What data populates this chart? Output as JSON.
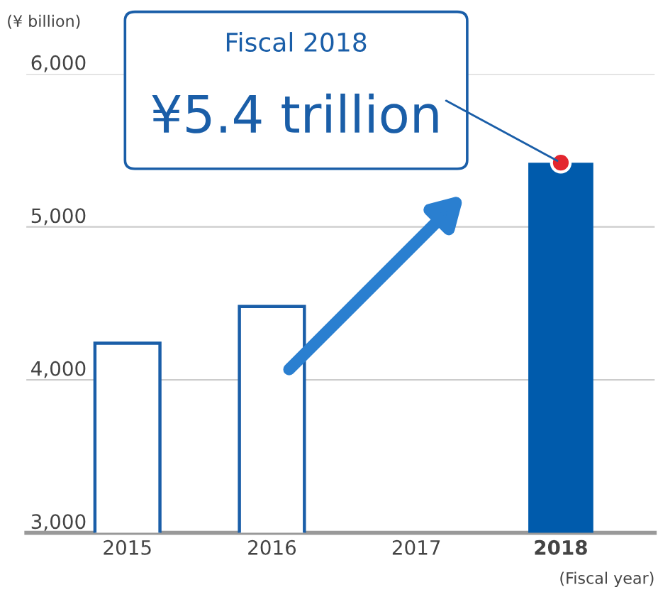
{
  "chart_data": {
    "type": "bar",
    "ylabel": "(¥ billion)",
    "xlabel": "(Fiscal year)",
    "categories": [
      "2015",
      "2016",
      "2017",
      "2018"
    ],
    "series": [
      {
        "color": "#1a5ea8",
        "values": [
          4240,
          4480,
          null,
          null
        ]
      },
      {
        "color": "#005bac",
        "values": [
          null,
          null,
          null,
          5420
        ]
      },
      {
        "type": "scatter",
        "color": "#e3262f",
        "values": [
          null,
          null,
          null,
          5420
        ]
      }
    ],
    "ylim": [
      3000,
      6000
    ],
    "yticks": [
      {
        "value": 3000,
        "label": "3,000"
      },
      {
        "value": 4000,
        "label": "4,000"
      },
      {
        "value": 5000,
        "label": "5,000"
      },
      {
        "value": 6000,
        "label": "6,000"
      }
    ],
    "grid": "y",
    "legend": false,
    "annotations": [
      "Fiscal 2018",
      {
        "text": "¥5.4 trillion",
        "x": "2018",
        "y": 5420
      }
    ]
  }
}
